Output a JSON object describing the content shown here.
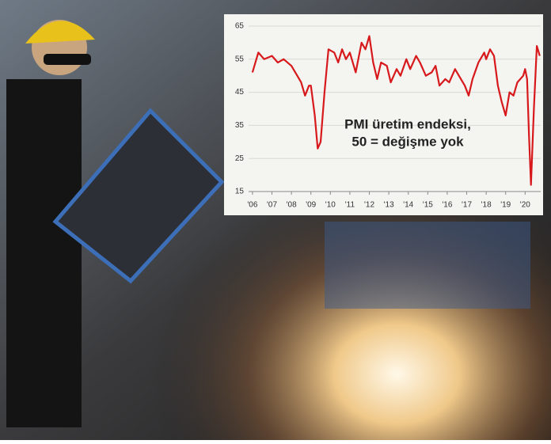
{
  "chart_data": {
    "type": "line",
    "annotation": [
      "PMI üretim endeksi,",
      "50 = değişme yok"
    ],
    "x": [
      2006.0,
      2006.3,
      2006.6,
      2007.0,
      2007.3,
      2007.6,
      2008.0,
      2008.3,
      2008.5,
      2008.7,
      2008.9,
      2009.0,
      2009.2,
      2009.35,
      2009.5,
      2009.7,
      2009.9,
      2010.2,
      2010.4,
      2010.6,
      2010.8,
      2011.0,
      2011.3,
      2011.6,
      2011.8,
      2012.0,
      2012.2,
      2012.4,
      2012.6,
      2012.9,
      2013.1,
      2013.4,
      2013.6,
      2013.9,
      2014.1,
      2014.4,
      2014.6,
      2014.9,
      2015.2,
      2015.4,
      2015.6,
      2015.9,
      2016.1,
      2016.4,
      2016.6,
      2016.9,
      2017.1,
      2017.3,
      2017.6,
      2017.9,
      2018.0,
      2018.2,
      2018.4,
      2018.6,
      2018.8,
      2019.0,
      2019.2,
      2019.4,
      2019.6,
      2019.9,
      2020.0,
      2020.1,
      2020.2,
      2020.3,
      2020.45,
      2020.6,
      2020.75
    ],
    "series": [
      {
        "color": "#d7191c",
        "values": [
          51,
          57,
          55,
          56,
          54,
          55,
          53,
          50,
          48,
          44,
          47,
          47,
          38,
          28,
          30,
          45,
          58,
          57,
          54,
          58,
          55,
          57,
          51,
          60,
          58,
          62,
          54,
          49,
          54,
          53,
          48,
          52,
          50,
          55,
          52,
          56,
          54,
          50,
          51,
          53,
          47,
          49,
          48,
          52,
          50,
          47,
          44,
          49,
          54,
          57,
          55,
          58,
          56,
          47,
          42,
          38,
          45,
          44,
          48,
          50,
          52,
          49,
          32,
          17,
          40,
          59,
          56
        ]
      }
    ],
    "xlim": [
      2005.8,
      2020.8
    ],
    "xticks": [
      {
        "value": 2006,
        "label": "'06"
      },
      {
        "value": 2007,
        "label": "'07"
      },
      {
        "value": 2008,
        "label": "'08"
      },
      {
        "value": 2009,
        "label": "'09"
      },
      {
        "value": 2010,
        "label": "'10"
      },
      {
        "value": 2011,
        "label": "'11"
      },
      {
        "value": 2012,
        "label": "'12"
      },
      {
        "value": 2013,
        "label": "'13"
      },
      {
        "value": 2014,
        "label": "'14"
      },
      {
        "value": 2015,
        "label": "'15"
      },
      {
        "value": 2016,
        "label": "'16"
      },
      {
        "value": 2017,
        "label": "'17"
      },
      {
        "value": 2018,
        "label": "'18"
      },
      {
        "value": 2019,
        "label": "'19"
      },
      {
        "value": 2020,
        "label": "'20"
      }
    ],
    "ylim": [
      15,
      65
    ],
    "yticks": [
      15,
      25,
      35,
      45,
      55,
      65
    ],
    "grid": true
  }
}
